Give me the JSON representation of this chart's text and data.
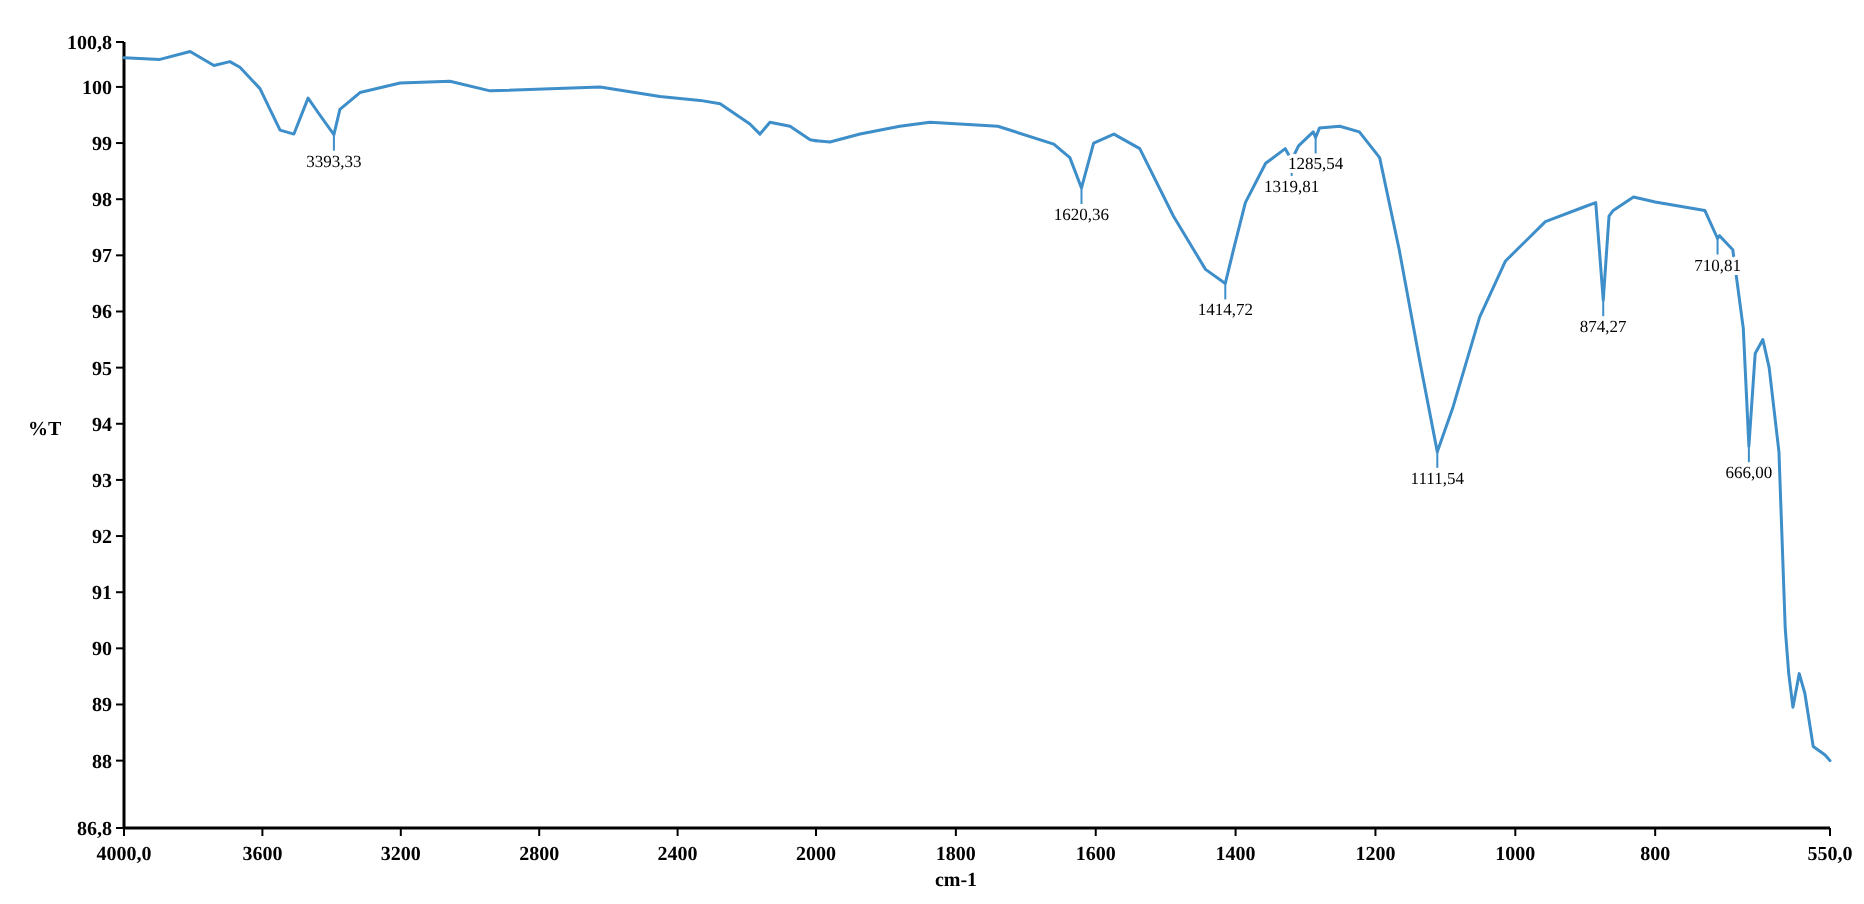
{
  "chart_data": [
    {
      "type": "line",
      "ylabel": "%T",
      "xlim": [
        4000,
        2000
      ],
      "xticks": [
        {
          "value": 4000,
          "label": "4000,0"
        },
        3600,
        3200,
        2800,
        2400,
        2000
      ],
      "ylim": [
        86.8,
        100.8
      ],
      "yticks": [
        {
          "value": 86.8,
          "label": "86,8"
        },
        88,
        89,
        90,
        91,
        92,
        93,
        94,
        95,
        96,
        97,
        98,
        99,
        100,
        {
          "value": 100.8,
          "label": "100,8"
        }
      ],
      "series": [
        {
          "color": "#3d8ec9",
          "x": [
            4000,
            3896,
            3809,
            3740,
            3694,
            3665,
            3607,
            3549,
            3509,
            3468,
            3434,
            3393.33,
            3376,
            3318,
            3202,
            3058,
            2942,
            2624,
            2451,
            2335,
            2277,
            2191,
            2162,
            2133,
            2075,
            2017,
            2000
          ],
          "values": [
            100.52,
            100.49,
            100.63,
            100.38,
            100.45,
            100.35,
            99.97,
            99.23,
            99.16,
            99.8,
            99.5,
            99.15,
            99.6,
            99.9,
            100.07,
            100.1,
            99.93,
            100.0,
            99.83,
            99.76,
            99.7,
            99.34,
            99.16,
            99.37,
            99.3,
            99.06,
            99.04
          ]
        }
      ],
      "annotations": [
        {
          "text": "3393,33",
          "x": 3393.33,
          "y": 99.15
        }
      ]
    },
    {
      "type": "line",
      "xlabel": "cm-1",
      "tick_labels": "x",
      "xlim": [
        2000,
        550
      ],
      "xticks": [
        1800,
        1600,
        1400,
        1200,
        1000,
        800,
        {
          "value": 550,
          "label": "550,0"
        }
      ],
      "ylim": [
        86.8,
        100.8
      ],
      "series": [
        {
          "color": "#3d8ec9",
          "x": [
            2000,
            1980,
            1937,
            1880,
            1837,
            1740,
            1660,
            1637,
            1620.36,
            1603,
            1574,
            1537,
            1489,
            1443,
            1414.72,
            1403,
            1386,
            1357,
            1329,
            1319.81,
            1310,
            1289,
            1285.54,
            1280,
            1251,
            1223,
            1194,
            1166,
            1137,
            1111.54,
            1089,
            1051,
            1014,
            957,
            900,
            885,
            874.27,
            866,
            860,
            831,
            800,
            729,
            710.81,
            708,
            689,
            674,
            666,
            657,
            646,
            637,
            623,
            614,
            609,
            603,
            594,
            586,
            574,
            557,
            550
          ],
          "values": [
            99.04,
            99.02,
            99.16,
            99.3,
            99.37,
            99.3,
            98.98,
            98.74,
            98.2,
            99.0,
            99.16,
            98.9,
            97.7,
            96.75,
            96.5,
            97.1,
            97.94,
            98.64,
            98.9,
            98.7,
            98.95,
            99.2,
            99.1,
            99.27,
            99.3,
            99.2,
            98.74,
            97.1,
            95.14,
            93.5,
            94.3,
            95.9,
            96.9,
            97.6,
            97.87,
            97.94,
            96.2,
            97.7,
            97.8,
            98.04,
            97.95,
            97.8,
            97.3,
            97.35,
            97.1,
            95.7,
            93.6,
            95.25,
            95.5,
            95.0,
            93.5,
            90.35,
            89.55,
            88.95,
            89.55,
            89.2,
            88.25,
            88.1,
            88.0
          ]
        }
      ],
      "annotations": [
        {
          "text": "1620,36",
          "x": 1620.36,
          "y": 98.2
        },
        {
          "text": "1414,72",
          "x": 1414.72,
          "y": 96.5
        },
        {
          "text": "1319,81",
          "x": 1319.81,
          "y": 98.7
        },
        {
          "text": "1285,54",
          "x": 1285.54,
          "y": 99.1
        },
        {
          "text": "1111,54",
          "x": 1111.54,
          "y": 93.5
        },
        {
          "text": "874,27",
          "x": 874.27,
          "y": 96.2
        },
        {
          "text": "710,81",
          "x": 710.81,
          "y": 97.3
        },
        {
          "text": "666,00",
          "x": 666,
          "y": 93.6
        }
      ]
    }
  ]
}
